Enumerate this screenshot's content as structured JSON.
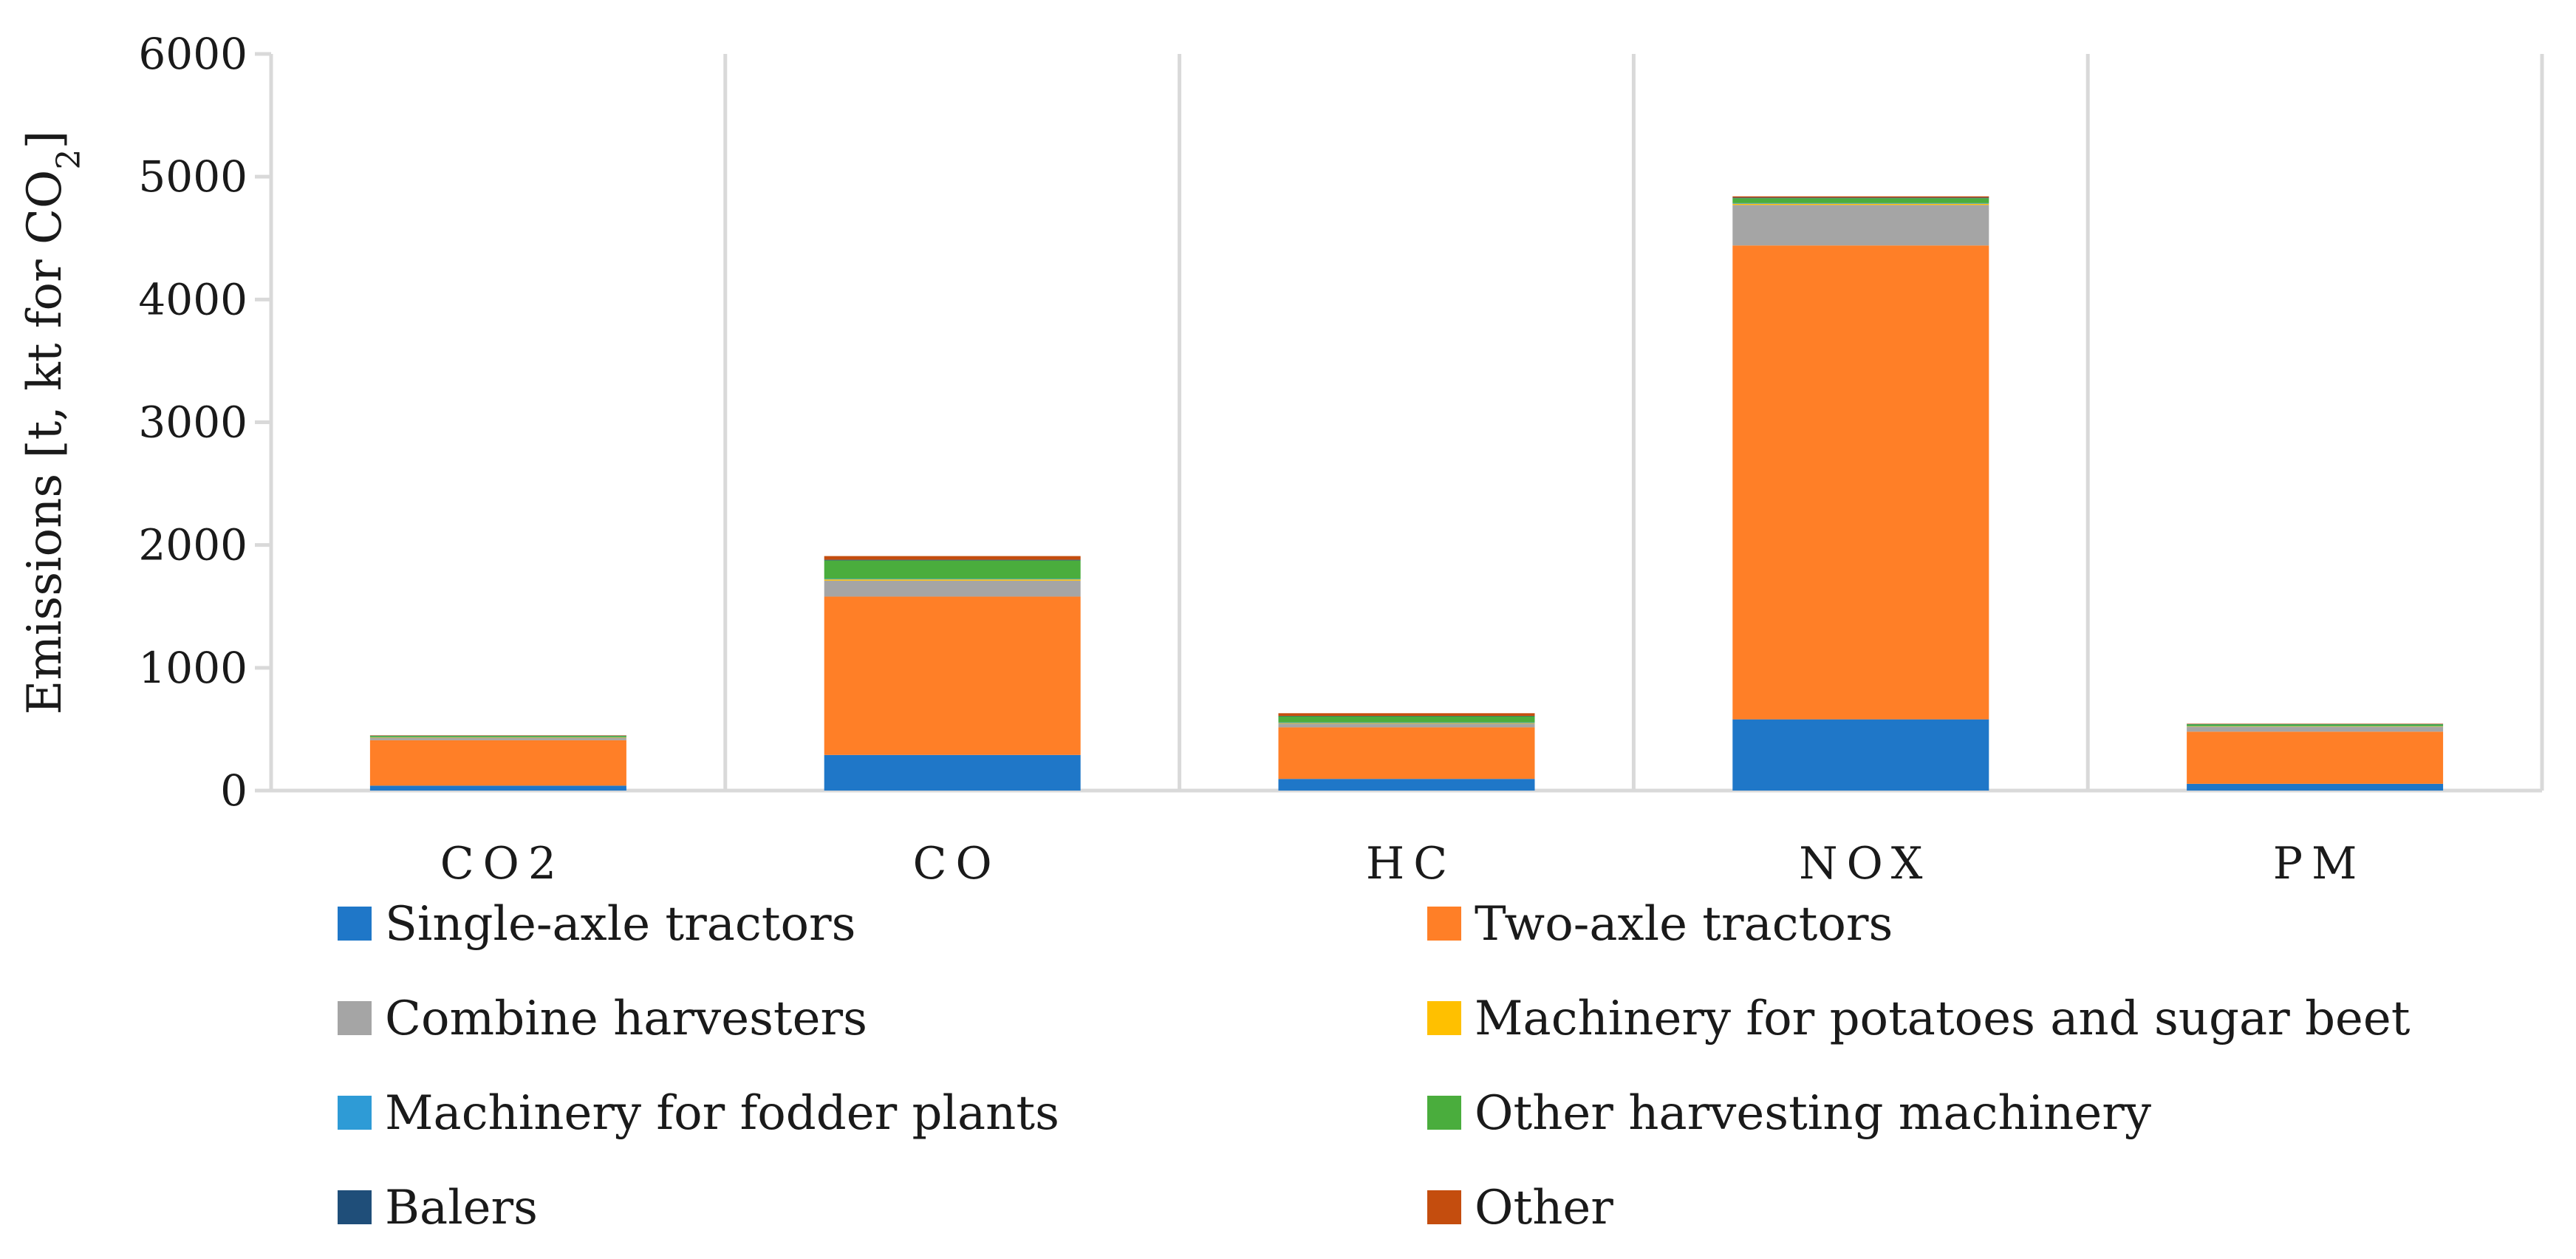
{
  "chart_data": {
    "type": "bar",
    "stacked": true,
    "categories": [
      "CO2",
      "CO",
      "HC",
      "NOX",
      "PM"
    ],
    "ylabel": "Emissions [t, kt for CO2]",
    "ylabel_parts": {
      "main": "Emissions [t, kt for CO",
      "sub": "2",
      "end": "]"
    },
    "ylim": [
      0,
      6000
    ],
    "yticks": [
      "0",
      "1000",
      "2000",
      "3000",
      "4000",
      "5000",
      "6000"
    ],
    "grid": "vertical category separators",
    "legend_position": "bottom, two columns",
    "series": [
      {
        "name": "Single-axle tractors",
        "color": "#1f77c8",
        "values": [
          40,
          290,
          95,
          580,
          55
        ]
      },
      {
        "name": "Two-axle tractors",
        "color": "#ff7f27",
        "values": [
          370,
          1290,
          420,
          3860,
          425
        ]
      },
      {
        "name": "Combine harvesters",
        "color": "#a5a5a5",
        "values": [
          20,
          130,
          30,
          330,
          40
        ]
      },
      {
        "name": "Machinery for potatoes and sugar beet",
        "color": "#ffc000",
        "values": [
          3,
          10,
          5,
          10,
          3
        ]
      },
      {
        "name": "Machinery for fodder plants",
        "color": "#2e9bd6",
        "values": [
          2,
          5,
          5,
          5,
          2
        ]
      },
      {
        "name": "Other harvesting machinery",
        "color": "#4aad3d",
        "values": [
          10,
          150,
          50,
          40,
          15
        ]
      },
      {
        "name": "Balers",
        "color": "#1f4e79",
        "values": [
          2,
          5,
          3,
          5,
          2
        ]
      },
      {
        "name": "Other",
        "color": "#c44d0e",
        "values": [
          3,
          30,
          22,
          10,
          3
        ]
      }
    ]
  }
}
